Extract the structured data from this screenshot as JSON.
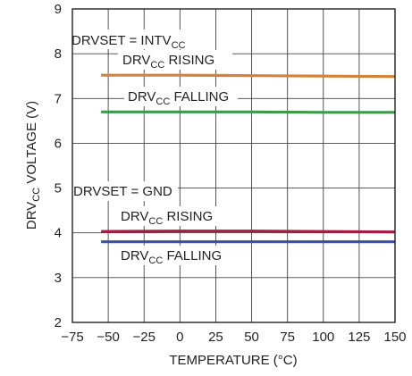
{
  "chart_data": {
    "type": "line",
    "xlabel": "TEMPERATURE (°C)",
    "ylabel": {
      "main": "DRV",
      "sub": "CC",
      "tail": " VOLTAGE (V)"
    },
    "xlim": [
      -75,
      150
    ],
    "ylim": [
      2,
      9
    ],
    "xticks": [
      -75,
      -50,
      -25,
      0,
      25,
      50,
      75,
      100,
      125,
      150
    ],
    "yticks": [
      2,
      3,
      4,
      5,
      6,
      7,
      8,
      9
    ],
    "grid": true,
    "series": [
      {
        "color": "#d4823a",
        "x": [
          -55,
          0,
          50,
          100,
          150
        ],
        "y": [
          7.52,
          7.52,
          7.51,
          7.5,
          7.49
        ]
      },
      {
        "color": "#3f9a48",
        "x": [
          -55,
          0,
          50,
          100,
          150
        ],
        "y": [
          6.7,
          6.7,
          6.7,
          6.69,
          6.69
        ]
      },
      {
        "color": "#a51e42",
        "x": [
          -55,
          0,
          50,
          100,
          150
        ],
        "y": [
          4.03,
          4.04,
          4.04,
          4.03,
          4.02
        ]
      },
      {
        "color": "#3b4fa3",
        "x": [
          -55,
          0,
          50,
          100,
          150
        ],
        "y": [
          3.8,
          3.8,
          3.8,
          3.8,
          3.8
        ]
      }
    ],
    "annotations": {
      "drvset_intv": {
        "main": "DRVSET = INTV",
        "sub": "CC"
      },
      "rising_high": {
        "main": "DRV",
        "sub": "CC",
        "tail": " RISING"
      },
      "falling_high": {
        "main": "DRV",
        "sub": "CC",
        "tail": " FALLING"
      },
      "drvset_gnd": {
        "main": "DRVSET = GND"
      },
      "rising_low": {
        "main": "DRV",
        "sub": "CC",
        "tail": " RISING"
      },
      "falling_low": {
        "main": "DRV",
        "sub": "CC",
        "tail": " FALLING"
      }
    }
  }
}
